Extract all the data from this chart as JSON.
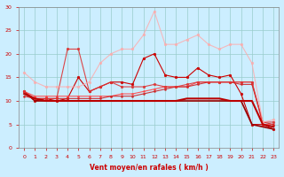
{
  "title": "",
  "xlabel": "Vent moyen/en rafales ( km/h )",
  "ylabel": "",
  "bg_color": "#cceeff",
  "grid_color": "#99cccc",
  "xlim": [
    -0.5,
    23.5
  ],
  "ylim": [
    0,
    30
  ],
  "yticks": [
    0,
    5,
    10,
    15,
    20,
    25,
    30
  ],
  "xticks": [
    0,
    1,
    2,
    3,
    4,
    5,
    6,
    7,
    8,
    9,
    10,
    11,
    12,
    13,
    14,
    15,
    16,
    17,
    18,
    19,
    20,
    21,
    22,
    23
  ],
  "series": [
    {
      "y": [
        12,
        10,
        10.5,
        10,
        10.5,
        15,
        12,
        13,
        14,
        14,
        13.5,
        19,
        20,
        15.5,
        15,
        15,
        17,
        15.5,
        15,
        15.5,
        11.5,
        5,
        5,
        4
      ],
      "color": "#cc0000",
      "alpha": 1.0,
      "marker": "o",
      "ms": 2.0,
      "lw": 0.8
    },
    {
      "y": [
        12,
        10,
        10,
        10,
        10,
        10,
        10,
        10,
        10,
        10,
        10,
        10,
        10,
        10,
        10,
        10,
        10,
        10,
        10,
        10,
        10,
        5,
        4.5,
        4
      ],
      "color": "#990000",
      "alpha": 1.0,
      "marker": null,
      "ms": 0,
      "lw": 1.2
    },
    {
      "y": [
        12,
        11,
        11,
        11,
        11,
        11,
        11,
        11,
        11,
        11.5,
        11.5,
        12,
        12.5,
        13,
        13,
        13,
        14,
        14,
        14,
        14,
        14,
        14,
        5,
        5
      ],
      "color": "#ff4444",
      "alpha": 0.9,
      "marker": "o",
      "ms": 1.5,
      "lw": 0.8
    },
    {
      "y": [
        11,
        10.5,
        10.5,
        10.5,
        10.5,
        10.5,
        10.5,
        10.5,
        11,
        11,
        11,
        11.5,
        12,
        12.5,
        13,
        13,
        13.5,
        14,
        14,
        14,
        13.5,
        13.5,
        5.5,
        5
      ],
      "color": "#cc2222",
      "alpha": 0.9,
      "marker": "o",
      "ms": 1.5,
      "lw": 0.8
    },
    {
      "y": [
        12,
        10.5,
        10.5,
        10.5,
        21,
        21,
        12,
        13,
        14,
        13,
        13,
        13,
        13.5,
        13,
        13,
        13.5,
        14,
        14,
        14,
        14,
        14,
        14,
        5.5,
        5.5
      ],
      "color": "#dd3333",
      "alpha": 0.9,
      "marker": "o",
      "ms": 2.0,
      "lw": 0.8
    },
    {
      "y": [
        16,
        14,
        13,
        13,
        13,
        13,
        14,
        18,
        20,
        21,
        21,
        24,
        29,
        22,
        22,
        23,
        24,
        22,
        21,
        22,
        22,
        18,
        5.5,
        6
      ],
      "color": "#ffaaaa",
      "alpha": 0.8,
      "marker": "o",
      "ms": 2.0,
      "lw": 0.8
    },
    {
      "y": [
        11.5,
        10.5,
        10,
        10,
        10,
        10,
        10,
        10,
        10,
        10,
        10,
        10,
        10,
        10,
        10,
        10.5,
        10.5,
        10.5,
        10.5,
        10,
        10,
        10,
        5,
        4.5
      ],
      "color": "#bb0000",
      "alpha": 1.0,
      "marker": null,
      "ms": 0,
      "lw": 1.5
    }
  ]
}
